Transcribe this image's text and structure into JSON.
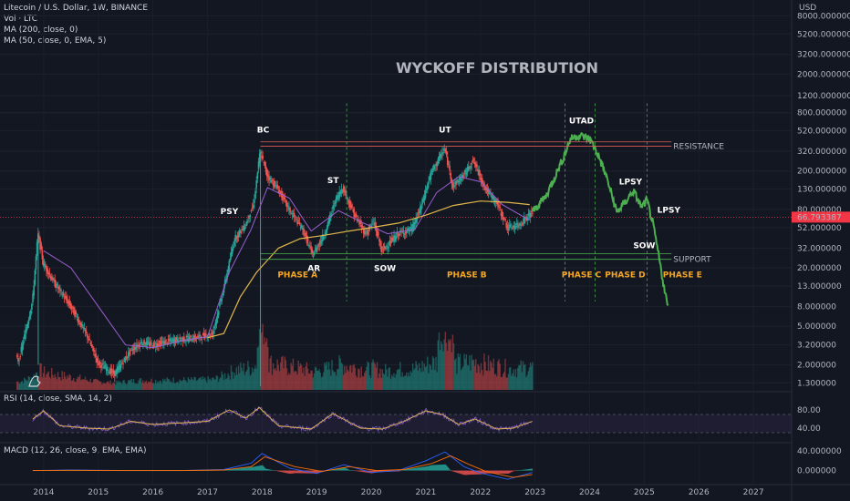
{
  "header": {
    "symbol_line": "Litecoin / U.S. Dollar, 1W, BINANCE",
    "vol_line": "Vol · LTC",
    "ma1_line": "MA (200, close, 0)",
    "ma2_line": "MA (50, close, 0, EMA, 5)",
    "rsi_line": "RSI (14, close, SMA, 14, 2)",
    "macd_line": "MACD (12, 26, close, 9, EMA, EMA)"
  },
  "colors": {
    "background": "#131722",
    "up": "#26a69a",
    "down": "#ef5350",
    "projection": "#4caf50",
    "ma200": "#e0b64a",
    "ma50": "#9c5fd1",
    "resistance": "#e05c5c",
    "support": "#4caf50",
    "phase": "#f5a623",
    "price_tag": "#f23645"
  },
  "chart_data": {
    "type": "candlestick",
    "title": "WYCKOFF DISTRIBUTION",
    "currency_label": "USD",
    "y_scale": "log",
    "y_ticks": [
      "8000.000000",
      "5200.000000",
      "3200.000000",
      "2000.000000",
      "1200.000000",
      "800.000000",
      "520.000000",
      "320.000000",
      "200.000000",
      "130.000000",
      "80.000000",
      "52.000000",
      "32.000000",
      "20.000000",
      "13.000000",
      "8.000000",
      "5.000000",
      "3.200000",
      "2.000000",
      "1.300000"
    ],
    "x_ticks": [
      "2014",
      "2015",
      "2016",
      "2017",
      "2018",
      "2019",
      "2020",
      "2021",
      "2022",
      "2023",
      "2024",
      "2025",
      "2026",
      "2027"
    ],
    "current_price": "66.793387",
    "resistance_label": "RESISTANCE",
    "support_label": "SUPPORT",
    "resistance_levels": [
      400,
      360
    ],
    "support_levels": [
      28,
      24.5
    ],
    "price_points": [
      [
        2013.3,
        3
      ],
      [
        2013.55,
        2.2
      ],
      [
        2013.8,
        9
      ],
      [
        2013.9,
        45
      ],
      [
        2014.0,
        22
      ],
      [
        2014.2,
        14
      ],
      [
        2014.5,
        8
      ],
      [
        2014.8,
        4
      ],
      [
        2015.0,
        2.1
      ],
      [
        2015.3,
        1.6
      ],
      [
        2015.6,
        2.8
      ],
      [
        2015.8,
        3.4
      ],
      [
        2016.0,
        3.2
      ],
      [
        2016.4,
        3.6
      ],
      [
        2016.8,
        3.8
      ],
      [
        2017.1,
        4.2
      ],
      [
        2017.3,
        12
      ],
      [
        2017.5,
        40
      ],
      [
        2017.7,
        55
      ],
      [
        2017.85,
        90
      ],
      [
        2017.97,
        320
      ],
      [
        2018.1,
        180
      ],
      [
        2018.3,
        130
      ],
      [
        2018.5,
        80
      ],
      [
        2018.75,
        50
      ],
      [
        2018.93,
        27
      ],
      [
        2019.15,
        45
      ],
      [
        2019.35,
        100
      ],
      [
        2019.48,
        135
      ],
      [
        2019.7,
        70
      ],
      [
        2019.9,
        45
      ],
      [
        2020.05,
        60
      ],
      [
        2020.2,
        30
      ],
      [
        2020.5,
        45
      ],
      [
        2020.75,
        50
      ],
      [
        2020.9,
        80
      ],
      [
        2021.1,
        190
      ],
      [
        2021.35,
        340
      ],
      [
        2021.5,
        140
      ],
      [
        2021.7,
        180
      ],
      [
        2021.87,
        260
      ],
      [
        2022.1,
        130
      ],
      [
        2022.3,
        95
      ],
      [
        2022.5,
        52
      ],
      [
        2022.7,
        55
      ],
      [
        2022.95,
        75
      ]
    ],
    "projection_points": [
      [
        2022.95,
        75
      ],
      [
        2023.2,
        110
      ],
      [
        2023.5,
        260
      ],
      [
        2023.65,
        430
      ],
      [
        2023.8,
        470
      ],
      [
        2024.0,
        430
      ],
      [
        2024.15,
        300
      ],
      [
        2024.3,
        180
      ],
      [
        2024.5,
        75
      ],
      [
        2024.65,
        95
      ],
      [
        2024.8,
        125
      ],
      [
        2024.95,
        85
      ],
      [
        2025.05,
        100
      ],
      [
        2025.15,
        60
      ],
      [
        2025.25,
        30
      ],
      [
        2025.35,
        14
      ],
      [
        2025.45,
        7
      ]
    ],
    "ma200_points": [
      [
        2017.0,
        3.8
      ],
      [
        2017.3,
        4.2
      ],
      [
        2017.6,
        10
      ],
      [
        2017.9,
        18
      ],
      [
        2018.3,
        32
      ],
      [
        2018.7,
        40
      ],
      [
        2019.1,
        43
      ],
      [
        2019.6,
        48
      ],
      [
        2020.0,
        52
      ],
      [
        2020.5,
        58
      ],
      [
        2021.0,
        70
      ],
      [
        2021.5,
        88
      ],
      [
        2022.0,
        98
      ],
      [
        2022.5,
        95
      ],
      [
        2022.9,
        90
      ]
    ],
    "ma50_points": [
      [
        2014.0,
        30
      ],
      [
        2014.5,
        20
      ],
      [
        2015.0,
        8
      ],
      [
        2015.5,
        3.2
      ],
      [
        2016.0,
        3.0
      ],
      [
        2016.5,
        3.5
      ],
      [
        2017.0,
        3.9
      ],
      [
        2017.4,
        18
      ],
      [
        2017.8,
        50
      ],
      [
        2018.1,
        135
      ],
      [
        2018.5,
        105
      ],
      [
        2018.9,
        48
      ],
      [
        2019.4,
        78
      ],
      [
        2019.8,
        60
      ],
      [
        2020.3,
        45
      ],
      [
        2020.8,
        50
      ],
      [
        2021.2,
        120
      ],
      [
        2021.6,
        175
      ],
      [
        2022.0,
        155
      ],
      [
        2022.4,
        90
      ],
      [
        2022.9,
        62
      ]
    ],
    "annotations": [
      {
        "text": "BC",
        "x": 2018.02,
        "y": 500
      },
      {
        "text": "UT",
        "x": 2021.35,
        "y": 500
      },
      {
        "text": "UTAD",
        "x": 2023.85,
        "y": 620
      },
      {
        "text": "PSY",
        "x": 2017.4,
        "y": 72
      },
      {
        "text": "ST",
        "x": 2019.3,
        "y": 150
      },
      {
        "text": "LPSY",
        "x": 2024.75,
        "y": 145
      },
      {
        "text": "LPSY",
        "x": 2025.45,
        "y": 74
      },
      {
        "text": "AR",
        "x": 2018.95,
        "y": 18.5
      },
      {
        "text": "SOW",
        "x": 2020.25,
        "y": 18.5
      },
      {
        "text": "SOW",
        "x": 2025.0,
        "y": 32
      }
    ],
    "phases": [
      {
        "label": "PHASE A",
        "x": 2018.65
      },
      {
        "label": "PHASE B",
        "x": 2021.75
      },
      {
        "label": "PHASE C",
        "x": 2023.85
      },
      {
        "label": "PHASE D",
        "x": 2024.65
      },
      {
        "label": "PHASE E",
        "x": 2025.7
      }
    ],
    "phase_dividers": [
      2019.55,
      2023.55,
      2024.1,
      2025.05
    ],
    "rsi": {
      "ticks": [
        "80.00",
        "40.00"
      ],
      "band": [
        70,
        30
      ],
      "points": [
        [
          2013.8,
          60
        ],
        [
          2014.0,
          78
        ],
        [
          2014.3,
          45
        ],
        [
          2014.8,
          40
        ],
        [
          2015.2,
          38
        ],
        [
          2015.6,
          55
        ],
        [
          2016.0,
          48
        ],
        [
          2016.6,
          52
        ],
        [
          2017.0,
          55
        ],
        [
          2017.4,
          80
        ],
        [
          2017.7,
          62
        ],
        [
          2017.95,
          85
        ],
        [
          2018.3,
          45
        ],
        [
          2018.9,
          38
        ],
        [
          2019.3,
          72
        ],
        [
          2019.8,
          40
        ],
        [
          2020.2,
          38
        ],
        [
          2020.6,
          55
        ],
        [
          2021.0,
          78
        ],
        [
          2021.3,
          70
        ],
        [
          2021.6,
          48
        ],
        [
          2021.9,
          60
        ],
        [
          2022.3,
          38
        ],
        [
          2022.6,
          40
        ],
        [
          2022.95,
          55
        ]
      ]
    },
    "macd": {
      "ticks": [
        "40.000000",
        "0.000000"
      ],
      "macd_points": [
        [
          2013.8,
          0
        ],
        [
          2014.5,
          1
        ],
        [
          2015.5,
          0
        ],
        [
          2016.5,
          0
        ],
        [
          2017.3,
          2
        ],
        [
          2017.8,
          15
        ],
        [
          2018.0,
          35
        ],
        [
          2018.5,
          5
        ],
        [
          2019.0,
          -6
        ],
        [
          2019.5,
          12
        ],
        [
          2020.0,
          -4
        ],
        [
          2020.5,
          0
        ],
        [
          2021.0,
          20
        ],
        [
          2021.35,
          38
        ],
        [
          2021.7,
          8
        ],
        [
          2022.0,
          -5
        ],
        [
          2022.5,
          -18
        ],
        [
          2022.95,
          -4
        ]
      ],
      "signal_points": [
        [
          2013.8,
          0
        ],
        [
          2014.5,
          0.5
        ],
        [
          2015.5,
          0
        ],
        [
          2016.5,
          0
        ],
        [
          2017.3,
          1
        ],
        [
          2017.8,
          8
        ],
        [
          2018.05,
          28
        ],
        [
          2018.6,
          8
        ],
        [
          2019.1,
          -2
        ],
        [
          2019.6,
          8
        ],
        [
          2020.1,
          0
        ],
        [
          2020.6,
          2
        ],
        [
          2021.1,
          14
        ],
        [
          2021.45,
          30
        ],
        [
          2021.8,
          12
        ],
        [
          2022.1,
          -2
        ],
        [
          2022.6,
          -14
        ],
        [
          2022.95,
          -8
        ]
      ]
    }
  }
}
